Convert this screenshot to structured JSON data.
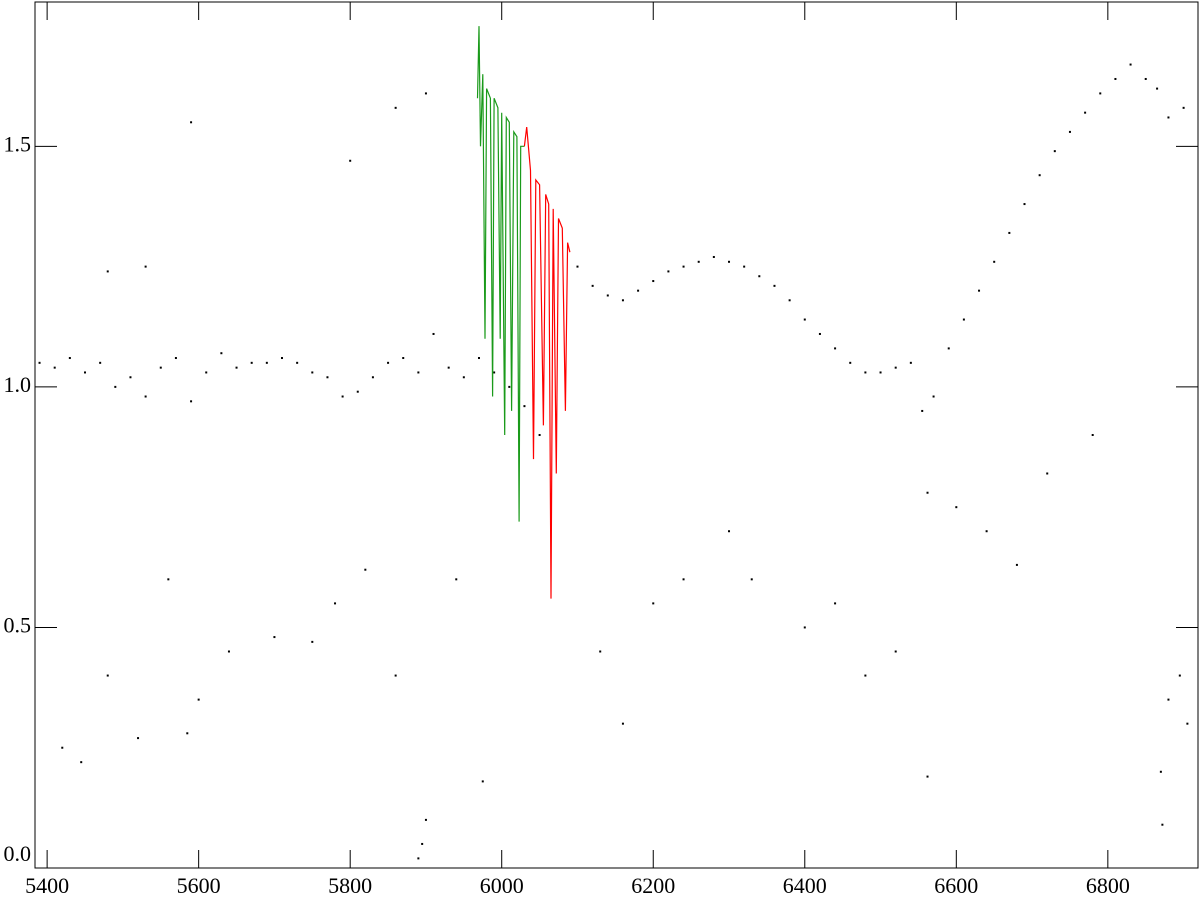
{
  "chart_data": {
    "type": "scatter",
    "xlim": [
      5384,
      6919
    ],
    "ylim": [
      0.0,
      1.8
    ],
    "xticks": [
      5400,
      5600,
      5800,
      6000,
      6200,
      6400,
      6600,
      6800
    ],
    "yticks": [
      {
        "value": 0,
        "label": "0.0"
      },
      0.5,
      {
        "value": 1,
        "label": "1.0"
      },
      1.5
    ],
    "series": [
      {
        "color": "#000000",
        "style": "points",
        "x": [
          5390,
          5410,
          5430,
          5450,
          5470,
          5490,
          5510,
          5530,
          5550,
          5570,
          5590,
          5610,
          5630,
          5650,
          5670,
          5690,
          5710,
          5730,
          5750,
          5770,
          5790,
          5810,
          5830,
          5850,
          5870,
          5890,
          5910,
          5930,
          5950,
          5970,
          5990,
          6010,
          6030,
          6100,
          6120,
          6140,
          6160,
          6180,
          6200,
          6220,
          6240,
          6260,
          6280,
          6300,
          6320,
          6340,
          6360,
          6380,
          6400,
          6420,
          6440,
          6460,
          6480,
          6500,
          6520,
          6540,
          6555,
          6562,
          6570,
          6590,
          6610,
          6630,
          6650,
          6670,
          6690,
          6710,
          6730,
          6750,
          6770,
          6790,
          6810,
          6830,
          6850,
          6865,
          6880,
          6900,
          5420,
          5445,
          5480,
          5520,
          5560,
          5585,
          5600,
          5640,
          5700,
          5750,
          5780,
          5820,
          5860,
          5890,
          5895,
          5900,
          5940,
          5975,
          6050,
          6130,
          6160,
          6200,
          6240,
          6300,
          6330,
          6400,
          6440,
          6480,
          6520,
          6562,
          6600,
          6640,
          6680,
          6720,
          6780,
          6870,
          6872,
          6880,
          6895,
          6905,
          5590,
          5800,
          5860,
          5480,
          5530,
          5900
        ],
        "y": [
          1.05,
          1.04,
          1.06,
          1.03,
          1.05,
          1.0,
          1.02,
          0.98,
          1.04,
          1.06,
          0.97,
          1.03,
          1.07,
          1.04,
          1.05,
          1.05,
          1.06,
          1.05,
          1.03,
          1.02,
          0.98,
          0.99,
          1.02,
          1.05,
          1.06,
          1.03,
          1.11,
          1.04,
          1.02,
          1.06,
          1.03,
          1.0,
          0.96,
          1.25,
          1.21,
          1.19,
          1.18,
          1.2,
          1.22,
          1.24,
          1.25,
          1.26,
          1.27,
          1.26,
          1.25,
          1.23,
          1.21,
          1.18,
          1.14,
          1.11,
          1.08,
          1.05,
          1.03,
          1.03,
          1.04,
          1.05,
          0.95,
          0.78,
          0.98,
          1.08,
          1.14,
          1.2,
          1.26,
          1.32,
          1.38,
          1.44,
          1.49,
          1.53,
          1.57,
          1.61,
          1.64,
          1.67,
          1.64,
          1.62,
          1.56,
          1.58,
          0.25,
          0.22,
          0.4,
          0.27,
          0.6,
          0.28,
          0.35,
          0.45,
          0.48,
          0.47,
          0.55,
          0.62,
          0.4,
          0.02,
          0.05,
          0.1,
          0.6,
          0.18,
          0.9,
          0.45,
          0.3,
          0.55,
          0.6,
          0.7,
          0.6,
          0.5,
          0.55,
          0.4,
          0.45,
          0.19,
          0.75,
          0.7,
          0.63,
          0.82,
          0.9,
          0.2,
          0.09,
          0.35,
          0.4,
          0.3,
          1.55,
          1.47,
          1.58,
          1.24,
          1.25,
          1.61
        ]
      },
      {
        "color": "#1a9a1a",
        "style": "line",
        "x": [
          5968,
          5970,
          5972,
          5975,
          5978,
          5980,
          5985,
          5988,
          5990,
          5995,
          5998,
          6000,
          6004,
          6006,
          6010,
          6013,
          6016,
          6020,
          6023,
          6025,
          6030
        ],
        "y": [
          1.6,
          1.75,
          1.5,
          1.65,
          1.1,
          1.62,
          1.6,
          0.98,
          1.6,
          1.58,
          1.1,
          1.57,
          0.9,
          1.56,
          1.55,
          0.95,
          1.53,
          1.52,
          0.72,
          1.5,
          1.5
        ]
      },
      {
        "color": "#ff0000",
        "style": "line",
        "x": [
          6030,
          6033,
          6038,
          6042,
          6045,
          6050,
          6055,
          6058,
          6062,
          6065,
          6068,
          6072,
          6075,
          6080,
          6084,
          6087,
          6090
        ],
        "y": [
          1.5,
          1.54,
          1.45,
          0.85,
          1.43,
          1.42,
          0.92,
          1.4,
          1.38,
          0.56,
          1.37,
          0.82,
          1.35,
          1.33,
          0.95,
          1.3,
          1.28
        ]
      }
    ]
  }
}
